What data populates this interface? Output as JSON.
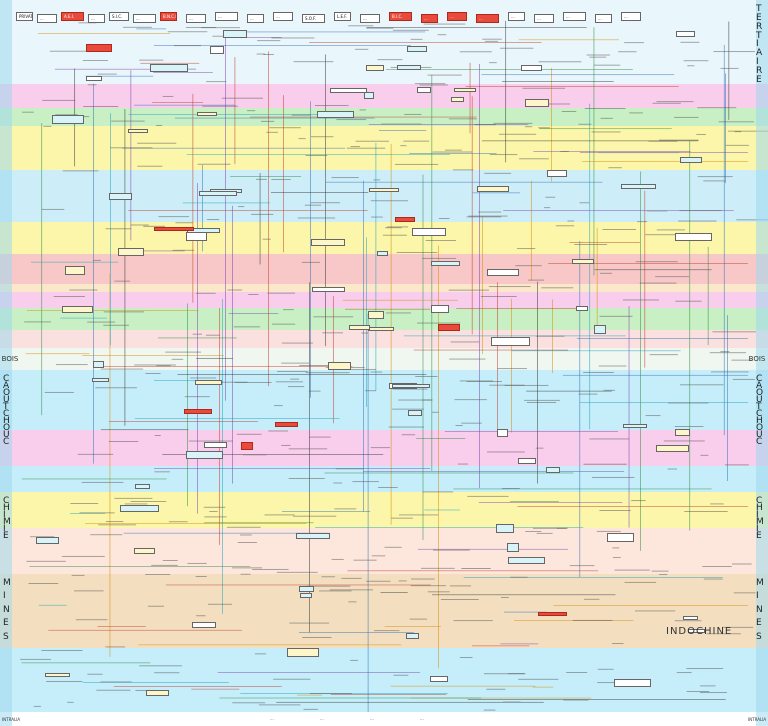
{
  "header": {
    "top_boxes": [
      {
        "label": "PRIVAT",
        "accent": false
      },
      {
        "label": "...",
        "accent": false
      },
      {
        "label": "A.E.I.",
        "accent": true
      },
      {
        "label": "...",
        "accent": false
      },
      {
        "label": "S.I.C.",
        "accent": false
      },
      {
        "label": "...",
        "accent": false
      },
      {
        "label": "B.N.C.I.",
        "accent": true
      },
      {
        "label": "...",
        "accent": false
      },
      {
        "label": "...",
        "accent": false
      },
      {
        "label": "...",
        "accent": false
      },
      {
        "label": "...",
        "accent": false
      },
      {
        "label": "S.O.F.",
        "accent": false
      },
      {
        "label": "L.E.F.",
        "accent": false
      },
      {
        "label": "...",
        "accent": false
      },
      {
        "label": "B.I.C.",
        "accent": true
      },
      {
        "label": "...",
        "accent": true
      },
      {
        "label": "...",
        "accent": true
      },
      {
        "label": "...",
        "accent": true
      },
      {
        "label": "...",
        "accent": false
      },
      {
        "label": "...",
        "accent": false
      },
      {
        "label": "...",
        "accent": false
      },
      {
        "label": "...",
        "accent": false
      },
      {
        "label": "...",
        "accent": false
      }
    ]
  },
  "sectors": [
    {
      "left": "",
      "right": "T E R T I A I R E",
      "color": "#e9f6fb"
    },
    {
      "left": "",
      "right": "",
      "color": "#f9cdec"
    },
    {
      "left": "",
      "right": "",
      "color": "#c8f0c4"
    },
    {
      "left": "",
      "right": "",
      "color": "#fbf6a9"
    },
    {
      "left": "",
      "right": "",
      "color": "#cdeef8"
    },
    {
      "left": "",
      "right": "",
      "color": "#fbf6a9"
    },
    {
      "left": "",
      "right": "",
      "color": "#f8c8c8"
    },
    {
      "left": "",
      "right": "",
      "color": "#fbe7c9"
    },
    {
      "left": "",
      "right": "",
      "color": "#f9cdec"
    },
    {
      "left": "",
      "right": "",
      "color": "#c8f0c4"
    },
    {
      "left": "",
      "right": "",
      "color": "#fbe0e0"
    },
    {
      "left": "BOIS",
      "right": "BOIS",
      "color": "#f0f6f0"
    },
    {
      "left": "C A O U T C H O U C",
      "right": "C A O U T C H O U C",
      "color": "#c5eefa"
    },
    {
      "left": "",
      "right": "",
      "color": "#f9cdec"
    },
    {
      "left": "",
      "right": "",
      "color": "#c5eefa"
    },
    {
      "left": "C H I M I E",
      "right": "C H I M I E",
      "color": "#fbf6a9"
    },
    {
      "left": "",
      "right": "",
      "color": "#fde6dc"
    },
    {
      "left": "M I N E S",
      "right": "M I N E S",
      "color": "#f3dfc0"
    },
    {
      "left": "",
      "right": "",
      "color": "#c5eefa"
    }
  ],
  "region_title": "INDOCHINE",
  "footer": {
    "left": "INTRALIA",
    "items": [
      "...",
      "...",
      "...",
      "..."
    ],
    "right": "INTRALIA"
  }
}
